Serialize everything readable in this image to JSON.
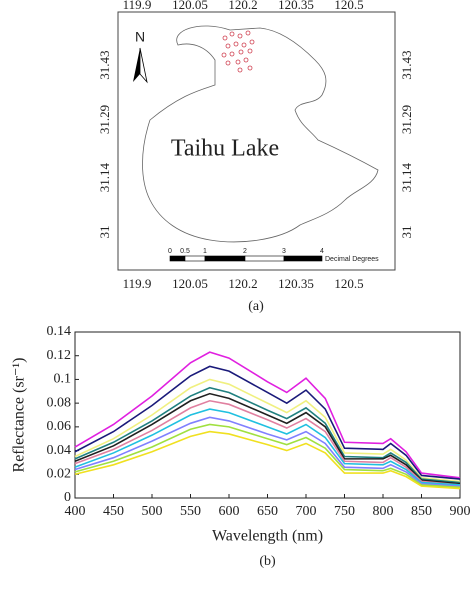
{
  "map": {
    "top_ticks": [
      "119.9",
      "120.05",
      "120.2",
      "120.35",
      "120.5"
    ],
    "bottom_ticks": [
      "119.9",
      "120.05",
      "120.2",
      "120.35",
      "120.5"
    ],
    "left_ticks": [
      "31.43",
      "31.29",
      "31.14",
      "31"
    ],
    "right_ticks": [
      "31.43",
      "31.29",
      "31.14",
      "31"
    ],
    "north": "N",
    "lake_label": "Taihu Lake",
    "scale_ticks": [
      "0",
      "0.5",
      "1",
      "2",
      "3",
      "4"
    ],
    "scale_unit": "Decimal Degrees",
    "caption": "(a)"
  },
  "chart_data": {
    "type": "line",
    "x": [
      400,
      450,
      500,
      550,
      575,
      600,
      650,
      675,
      700,
      725,
      750,
      800,
      810,
      830,
      850,
      900
    ],
    "series": [
      {
        "color": "#e020e0",
        "values": [
          0.043,
          0.062,
          0.086,
          0.114,
          0.123,
          0.118,
          0.098,
          0.089,
          0.101,
          0.084,
          0.047,
          0.046,
          0.05,
          0.039,
          0.021,
          0.017
        ]
      },
      {
        "color": "#1a1a7a",
        "values": [
          0.039,
          0.056,
          0.078,
          0.103,
          0.111,
          0.107,
          0.089,
          0.08,
          0.091,
          0.075,
          0.042,
          0.041,
          0.046,
          0.036,
          0.019,
          0.016
        ]
      },
      {
        "color": "#f0f080",
        "values": [
          0.035,
          0.05,
          0.07,
          0.093,
          0.1,
          0.096,
          0.08,
          0.072,
          0.082,
          0.068,
          0.038,
          0.037,
          0.041,
          0.032,
          0.017,
          0.014
        ]
      },
      {
        "color": "#208080",
        "values": [
          0.033,
          0.047,
          0.065,
          0.086,
          0.093,
          0.089,
          0.074,
          0.067,
          0.076,
          0.063,
          0.035,
          0.034,
          0.038,
          0.03,
          0.016,
          0.013
        ]
      },
      {
        "color": "#202020",
        "values": [
          0.031,
          0.044,
          0.062,
          0.082,
          0.088,
          0.084,
          0.07,
          0.063,
          0.072,
          0.06,
          0.033,
          0.033,
          0.036,
          0.028,
          0.015,
          0.012
        ]
      },
      {
        "color": "#e080a0",
        "values": [
          0.029,
          0.041,
          0.057,
          0.076,
          0.082,
          0.079,
          0.066,
          0.059,
          0.067,
          0.056,
          0.031,
          0.03,
          0.034,
          0.026,
          0.014,
          0.011
        ]
      },
      {
        "color": "#20c0e0",
        "values": [
          0.026,
          0.038,
          0.053,
          0.07,
          0.075,
          0.072,
          0.06,
          0.054,
          0.062,
          0.051,
          0.029,
          0.028,
          0.031,
          0.024,
          0.013,
          0.011
        ]
      },
      {
        "color": "#8080ff",
        "values": [
          0.024,
          0.034,
          0.048,
          0.063,
          0.068,
          0.065,
          0.054,
          0.049,
          0.056,
          0.046,
          0.026,
          0.025,
          0.028,
          0.022,
          0.012,
          0.01
        ]
      },
      {
        "color": "#a0e040",
        "values": [
          0.022,
          0.031,
          0.043,
          0.058,
          0.062,
          0.06,
          0.05,
          0.045,
          0.051,
          0.042,
          0.024,
          0.023,
          0.025,
          0.02,
          0.011,
          0.009
        ]
      },
      {
        "color": "#f0e020",
        "values": [
          0.02,
          0.028,
          0.039,
          0.052,
          0.056,
          0.054,
          0.045,
          0.04,
          0.046,
          0.038,
          0.021,
          0.021,
          0.023,
          0.018,
          0.01,
          0.008
        ]
      }
    ],
    "xlim": [
      400,
      900
    ],
    "xticks": [
      400,
      450,
      500,
      550,
      600,
      650,
      700,
      750,
      800,
      850,
      900
    ],
    "ylim": [
      0,
      0.14
    ],
    "yticks": [
      0,
      0.02,
      0.04,
      0.06,
      0.08,
      0.1,
      0.12,
      0.14
    ],
    "xlabel": "Wavelength (nm)",
    "ylabel": "Reflectance (sr⁻¹)",
    "caption": "(b)"
  }
}
